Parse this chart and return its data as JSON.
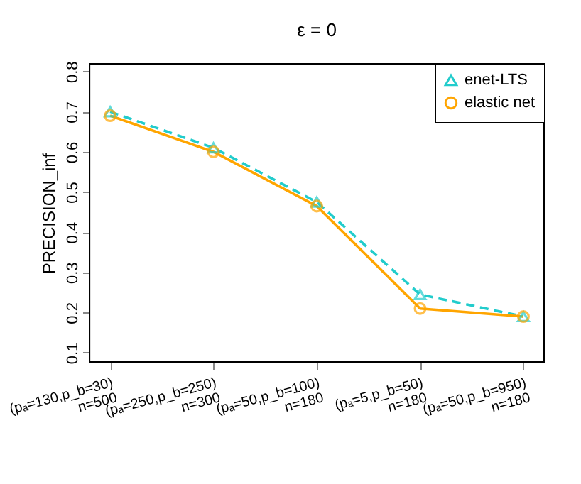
{
  "chart_data": {
    "type": "line",
    "title": "ε = 0",
    "ylabel": "PRECISION_inf",
    "categories": [
      "(pₐ=130,p_b=30)\nn=500",
      "(pₐ=250,p_b=250)\nn=300",
      "(pₐ=50,p_b=100)\nn=180",
      "(pₐ=5,p_b=50)\nn=180",
      "(pₐ=50,p_b=950)\nn=180"
    ],
    "series": [
      {
        "name": "enet-LTS",
        "color": "#22cccc",
        "marker": "triangle",
        "line_style": "dashed",
        "values": [
          0.7,
          0.61,
          0.475,
          0.245,
          0.19
        ]
      },
      {
        "name": "elastic net",
        "color": "#ffa500",
        "marker": "circle",
        "line_style": "solid",
        "values": [
          0.69,
          0.6,
          0.465,
          0.21,
          0.19
        ]
      }
    ],
    "ylim": [
      0.077,
      0.819
    ],
    "yticks": [
      0.1,
      0.2,
      0.3,
      0.4,
      0.5,
      0.6,
      0.7,
      0.8
    ],
    "grid": false,
    "legend": "top right"
  }
}
